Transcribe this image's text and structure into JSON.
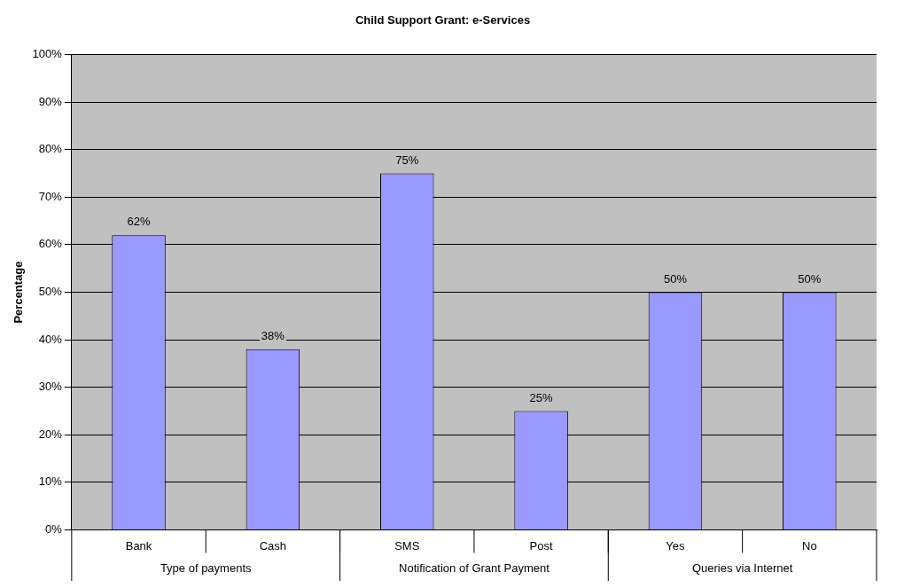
{
  "chart_data": {
    "type": "bar",
    "title": "Child Support Grant: e-Services",
    "ylabel": "Percentage",
    "categories": [
      "Bank",
      "Cash",
      "SMS",
      "Post",
      "Yes",
      "No"
    ],
    "values": [
      62,
      38,
      75,
      25,
      50,
      50
    ],
    "color": "#9999ff",
    "value_labels": [
      "62%",
      "38%",
      "75%",
      "25%",
      "50%",
      "50%"
    ],
    "ylim": [
      0,
      100
    ],
    "yticks": [
      {
        "value": 0,
        "label": "0%"
      },
      {
        "value": 10,
        "label": "10%"
      },
      {
        "value": 20,
        "label": "20%"
      },
      {
        "value": 30,
        "label": "30%"
      },
      {
        "value": 40,
        "label": "40%"
      },
      {
        "value": 50,
        "label": "50%"
      },
      {
        "value": 60,
        "label": "60%"
      },
      {
        "value": 70,
        "label": "70%"
      },
      {
        "value": 80,
        "label": "80%"
      },
      {
        "value": 90,
        "label": "90%"
      },
      {
        "value": 100,
        "label": "100%"
      }
    ],
    "annotations": [
      "Type of payments",
      "Notification of Grant Payment",
      "Queries via Internet"
    ],
    "grid": "y",
    "legend": false
  }
}
